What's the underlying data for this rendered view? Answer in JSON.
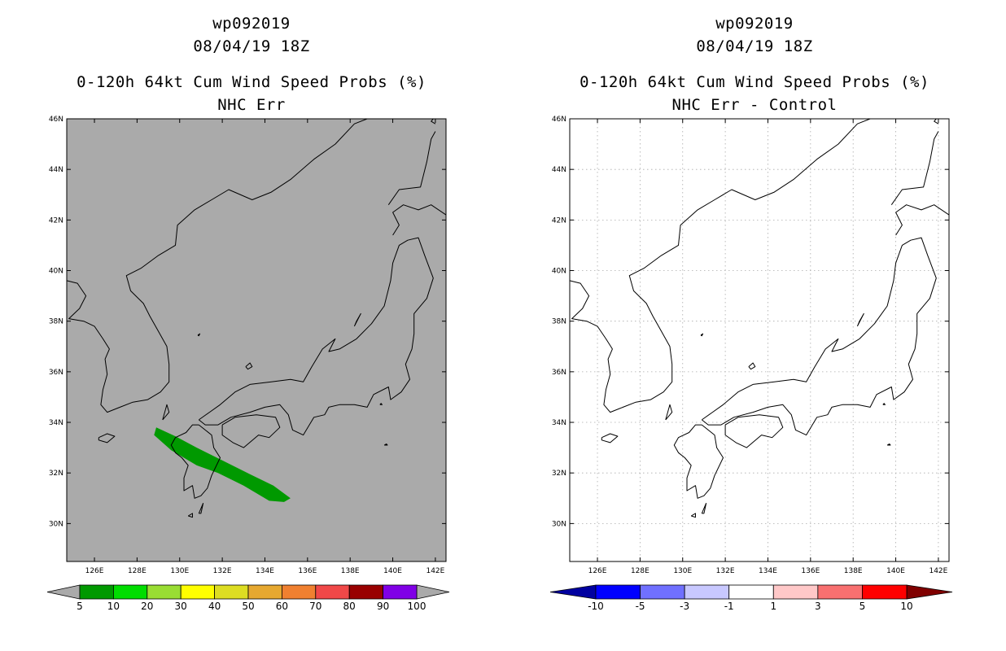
{
  "panels": [
    {
      "storm_id": "wp092019",
      "datetime": "08/04/19 18Z",
      "product": "0-120h 64kt Cum Wind Speed Probs (%)",
      "subtitle": "NHC Err",
      "background": "#aaaaaa",
      "colorbar": {
        "colors": [
          "#009900",
          "#00dd00",
          "#99dd33",
          "#ffff00",
          "#dddd22",
          "#e6a830",
          "#f08030",
          "#f04848",
          "#990000",
          "#8000e6"
        ],
        "labels": [
          "5",
          "10",
          "20",
          "30",
          "40",
          "50",
          "60",
          "70",
          "80",
          "90",
          "100"
        ],
        "arrow_colors": [
          "#aaaaaa",
          "#aaaaaa"
        ]
      }
    },
    {
      "storm_id": "wp092019",
      "datetime": "08/04/19 18Z",
      "product": "0-120h 64kt Cum Wind Speed Probs (%)",
      "subtitle": "NHC Err - Control",
      "background": "#ffffff",
      "colorbar": {
        "colors": [
          "#0000ff",
          "#7070ff",
          "#c8c8ff",
          "#ffffff",
          "#ffc8c8",
          "#f87070",
          "#ff0000"
        ],
        "labels": [
          "-10",
          "-5",
          "-3",
          "-1",
          "1",
          "3",
          "5",
          "10"
        ],
        "arrow_colors": [
          "#0000a0",
          "#800000"
        ]
      }
    }
  ],
  "axes": {
    "lat_labels": [
      "46N",
      "44N",
      "42N",
      "40N",
      "38N",
      "36N",
      "34N",
      "32N",
      "30N"
    ],
    "lon_labels": [
      "126E",
      "128E",
      "130E",
      "132E",
      "134E",
      "136E",
      "138E",
      "140E",
      "142E"
    ]
  },
  "swath_color": "#009900"
}
